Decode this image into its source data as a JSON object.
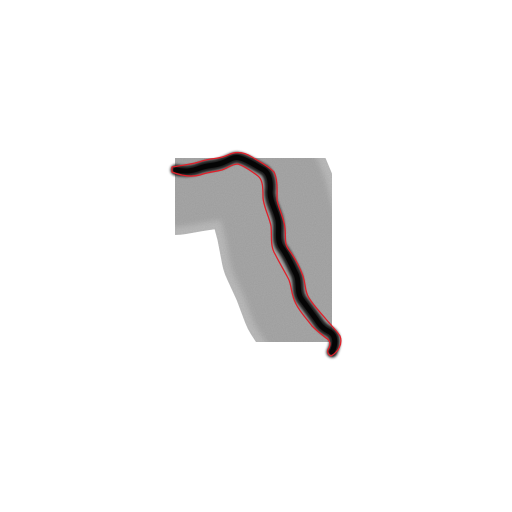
{
  "image": {
    "background_color": "#ffffff",
    "halo_color": "#a9a9a9",
    "halo_edge_color": "#bdbdbd",
    "filament_color": "#1a1a1a",
    "filament_core_color": "#050505",
    "outline_color": "#e0202a",
    "subject": "filament-with-segmentation-outline"
  }
}
